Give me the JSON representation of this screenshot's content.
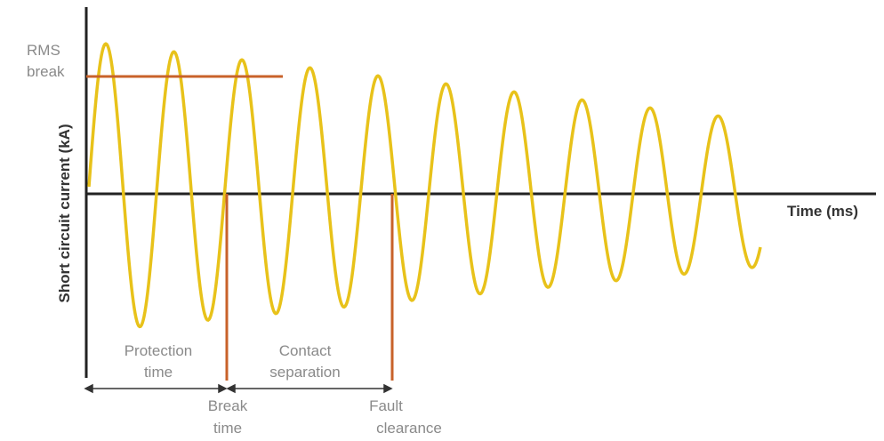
{
  "y_axis_label": "Short circuit current (kA)",
  "x_axis_label": "Time (ms)",
  "rms_label_line1": "RMS",
  "rms_label_line2": "break",
  "protection_line1": "Protection",
  "protection_line2": "time",
  "contact_line1": "Contact",
  "contact_line2": "separation",
  "break_line1": "Break",
  "break_line2": "time",
  "fault_line1": "Fault",
  "fault_line2": "clearance",
  "colors": {
    "waveform": "#e8c21a",
    "markers": "#c8622a",
    "axes": "#222222"
  },
  "waveform": {
    "cycles": 9.8,
    "peak_decay": 0.45
  }
}
